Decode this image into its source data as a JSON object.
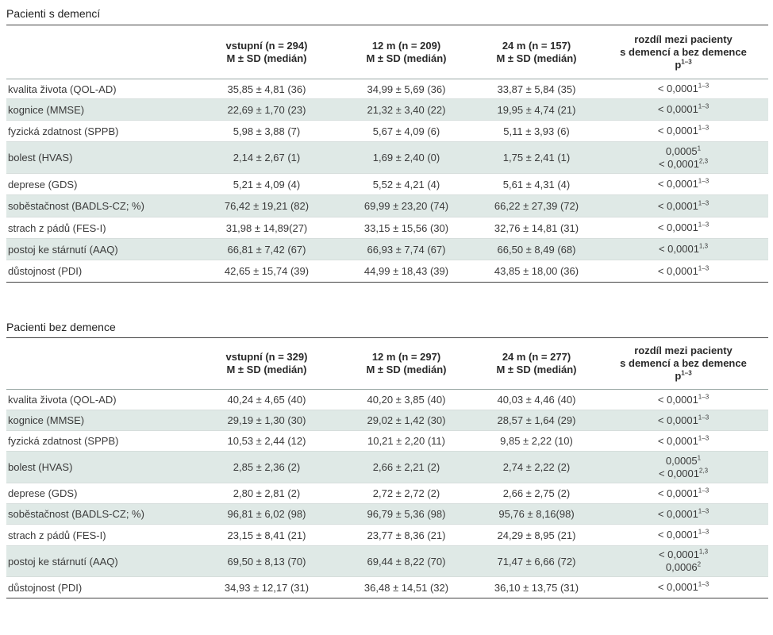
{
  "headers": [
    "",
    [
      "vstupní (n = 294)",
      "M ± SD (medián)"
    ],
    [
      "12 m (n = 209)",
      "M ± SD (medián)"
    ],
    [
      "24 m (n = 157)",
      "M ± SD (medián)"
    ],
    [
      "rozdíl mezi pacienty",
      "s demencí a bez demence",
      "p",
      "1–3"
    ]
  ],
  "sections": [
    {
      "title": "Pacienti s demencí",
      "columns": [
        {
          "line1": "vstupní (n = 294)",
          "line2": "M ± SD (medián)"
        },
        {
          "line1": "12 m (n = 209)",
          "line2": "M ± SD (medián)"
        },
        {
          "line1": "24 m (n = 157)",
          "line2": "M ± SD (medián)"
        },
        {
          "line1": "rozdíl mezi pacienty",
          "line2": "s demencí a bez demence",
          "line3": "p",
          "line3_sup": "1–3"
        }
      ],
      "rows": [
        {
          "label": "kvalita života (QOL-AD)",
          "v1": "35,85 ± 4,81 (36)",
          "v2": "34,99 ± 5,69 (36)",
          "v3": "33,87 ± 5,84 (35)",
          "p": [
            {
              "t": "< 0,0001",
              "s": "1–3"
            }
          ]
        },
        {
          "label": "kognice (MMSE)",
          "v1": "22,69 ± 1,70 (23)",
          "v2": "21,32 ± 3,40 (22)",
          "v3": "19,95 ± 4,74 (21)",
          "p": [
            {
              "t": "< 0,0001",
              "s": "1–3"
            }
          ]
        },
        {
          "label": "fyzická zdatnost (SPPB)",
          "v1": "5,98 ± 3,88 (7)",
          "v2": "5,67 ± 4,09 (6)",
          "v3": "5,11 ± 3,93 (6)",
          "p": [
            {
              "t": "< 0,0001",
              "s": "1–3"
            }
          ]
        },
        {
          "label": "bolest (HVAS)",
          "v1": "2,14 ± 2,67 (1)",
          "v2": "1,69 ± 2,40 (0)",
          "v3": "1,75 ± 2,41 (1)",
          "p": [
            {
              "t": "0,0005",
              "s": "1"
            },
            {
              "t": "< 0,0001",
              "s": "2,3"
            }
          ]
        },
        {
          "label": "deprese (GDS)",
          "v1": "5,21 ± 4,09 (4)",
          "v2": "5,52 ± 4,21 (4)",
          "v3": "5,61 ± 4,31 (4)",
          "p": [
            {
              "t": "< 0,0001",
              "s": "1–3"
            }
          ]
        },
        {
          "label": "soběstačnost (BADLS-CZ; %)",
          "v1": "76,42 ± 19,21 (82)",
          "v2": "69,99 ± 23,20 (74)",
          "v3": "66,22 ± 27,39 (72)",
          "p": [
            {
              "t": "< 0,0001",
              "s": "1–3"
            }
          ]
        },
        {
          "label": "strach z pádů (FES-I)",
          "v1": "31,98 ± 14,89(27)",
          "v2": "33,15 ± 15,56 (30)",
          "v3": "32,76 ± 14,81 (31)",
          "p": [
            {
              "t": "< 0,0001",
              "s": "1–3"
            }
          ]
        },
        {
          "label": "postoj ke stárnutí (AAQ)",
          "v1": "66,81 ± 7,42 (67)",
          "v2": "66,93 ± 7,74 (67)",
          "v3": "66,50 ± 8,49 (68)",
          "p": [
            {
              "t": "< 0,0001",
              "s": "1,3"
            }
          ]
        },
        {
          "label": "důstojnost (PDI)",
          "v1": "42,65 ± 15,74 (39)",
          "v2": "44,99 ± 18,43 (39)",
          "v3": "43,85 ± 18,00 (36)",
          "p": [
            {
              "t": "< 0,0001",
              "s": "1–3"
            }
          ]
        }
      ]
    },
    {
      "title": "Pacienti bez demence",
      "columns": [
        {
          "line1": "vstupní (n = 329)",
          "line2": "M ± SD (medián)"
        },
        {
          "line1": "12 m (n = 297)",
          "line2": "M ± SD (medián)"
        },
        {
          "line1": "24 m (n = 277)",
          "line2": "M ± SD (medián)"
        },
        {
          "line1": "rozdíl mezi pacienty",
          "line2": "s demencí a bez demence",
          "line3": "p",
          "line3_sup": "1–3"
        }
      ],
      "rows": [
        {
          "label": "kvalita života (QOL-AD)",
          "v1": "40,24 ± 4,65 (40)",
          "v2": "40,20 ± 3,85 (40)",
          "v3": "40,03 ± 4,46 (40)",
          "p": [
            {
              "t": "< 0,0001",
              "s": "1–3"
            }
          ]
        },
        {
          "label": "kognice (MMSE)",
          "v1": "29,19 ± 1,30 (30)",
          "v2": "29,02 ± 1,42 (30)",
          "v3": "28,57 ± 1,64 (29)",
          "p": [
            {
              "t": "< 0,0001",
              "s": "1–3"
            }
          ]
        },
        {
          "label": "fyzická zdatnost (SPPB)",
          "v1": "10,53 ± 2,44 (12)",
          "v2": "10,21 ± 2,20 (11)",
          "v3": "9,85 ± 2,22 (10)",
          "p": [
            {
              "t": "< 0,0001",
              "s": "1–3"
            }
          ]
        },
        {
          "label": "bolest (HVAS)",
          "v1": "2,85 ± 2,36 (2)",
          "v2": "2,66 ± 2,21 (2)",
          "v3": "2,74 ± 2,22 (2)",
          "p": [
            {
              "t": "0,0005",
              "s": "1"
            },
            {
              "t": "< 0,0001",
              "s": "2,3"
            }
          ]
        },
        {
          "label": "deprese (GDS)",
          "v1": "2,80 ± 2,81 (2)",
          "v2": "2,72 ± 2,72 (2)",
          "v3": "2,66 ± 2,75 (2)",
          "p": [
            {
              "t": "< 0,0001",
              "s": "1–3"
            }
          ]
        },
        {
          "label": "soběstačnost (BADLS-CZ; %)",
          "v1": "96,81 ± 6,02 (98)",
          "v2": "96,79 ± 5,36 (98)",
          "v3": "95,76 ± 8,16(98)",
          "p": [
            {
              "t": "< 0,0001",
              "s": "1–3"
            }
          ]
        },
        {
          "label": "strach z pádů (FES-I)",
          "v1": "23,15 ± 8,41 (21)",
          "v2": "23,77 ± 8,36 (21)",
          "v3": "24,29 ± 8,95 (21)",
          "p": [
            {
              "t": "< 0,0001",
              "s": "1–3"
            }
          ]
        },
        {
          "label": "postoj ke stárnutí (AAQ)",
          "v1": "69,50 ± 8,13 (70)",
          "v2": "69,44 ± 8,22 (70)",
          "v3": "71,47 ± 6,66 (72)",
          "p": [
            {
              "t": "< 0,0001",
              "s": "1,3"
            },
            {
              "t": "0,0006",
              "s": "2"
            }
          ]
        },
        {
          "label": "důstojnost (PDI)",
          "v1": "34,93 ± 12,17 (31)",
          "v2": "36,48 ± 14,51 (32)",
          "v3": "36,10 ± 13,75 (31)",
          "p": [
            {
              "t": "< 0,0001",
              "s": "1–3"
            }
          ]
        }
      ]
    }
  ]
}
